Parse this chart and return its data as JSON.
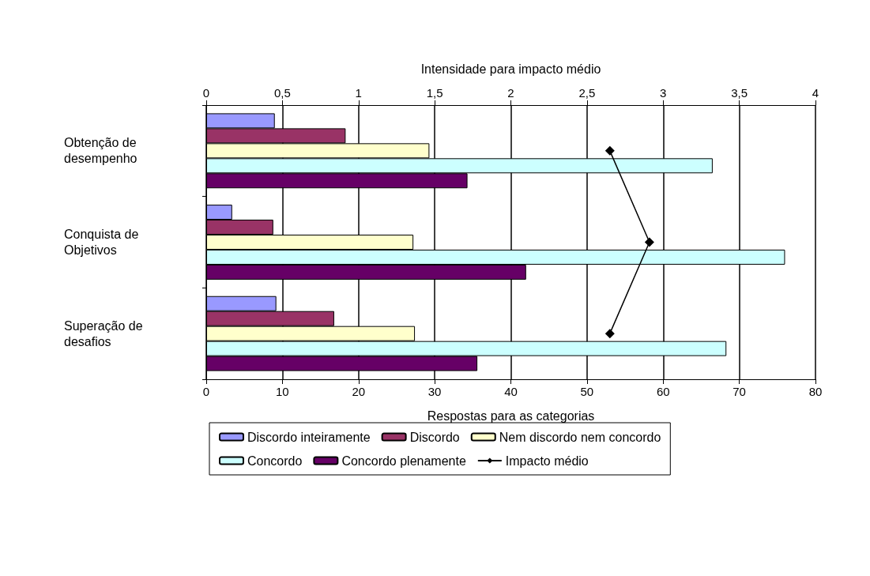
{
  "chart_data": {
    "type": "bar",
    "orientation": "horizontal",
    "xlabel": "Respostas para as categorias",
    "x2label": "Intensidade para impacto médio",
    "categories": [
      "Obtenção de desempenho",
      "Conquista de Objetivos",
      "Superação de desafios"
    ],
    "series": [
      {
        "name": "Discordo inteiramente",
        "color": "#9999ff",
        "values": [
          9.0,
          3.4,
          9.2
        ]
      },
      {
        "name": "Discordo",
        "color": "#993366",
        "values": [
          18.3,
          8.8,
          16.8
        ]
      },
      {
        "name": "Nem discordo nem concordo",
        "color": "#ffffcc",
        "values": [
          29.3,
          27.2,
          27.4
        ]
      },
      {
        "name": "Concordo",
        "color": "#ccffff",
        "values": [
          66.5,
          76.0,
          68.3
        ]
      },
      {
        "name": "Concordo plenamente",
        "color": "#660066",
        "values": [
          34.3,
          42.0,
          35.6
        ]
      },
      {
        "name": "Impacto médio",
        "type": "line",
        "axis": "x2",
        "color": "#000000",
        "marker": "diamond",
        "values": [
          2.65,
          2.91,
          2.65
        ]
      }
    ],
    "xlim": [
      0,
      80
    ],
    "xticks": [
      0,
      10,
      20,
      30,
      40,
      50,
      60,
      70,
      80
    ],
    "x2lim": [
      0,
      4
    ],
    "x2ticks": [
      0,
      {
        "value": 0.5,
        "label": "0,5"
      },
      1,
      {
        "value": 1.5,
        "label": "1,5"
      },
      2,
      {
        "value": 2.5,
        "label": "2,5"
      },
      3,
      {
        "value": 3.5,
        "label": "3,5"
      },
      4
    ],
    "grid": "x",
    "legend": "bottom"
  }
}
